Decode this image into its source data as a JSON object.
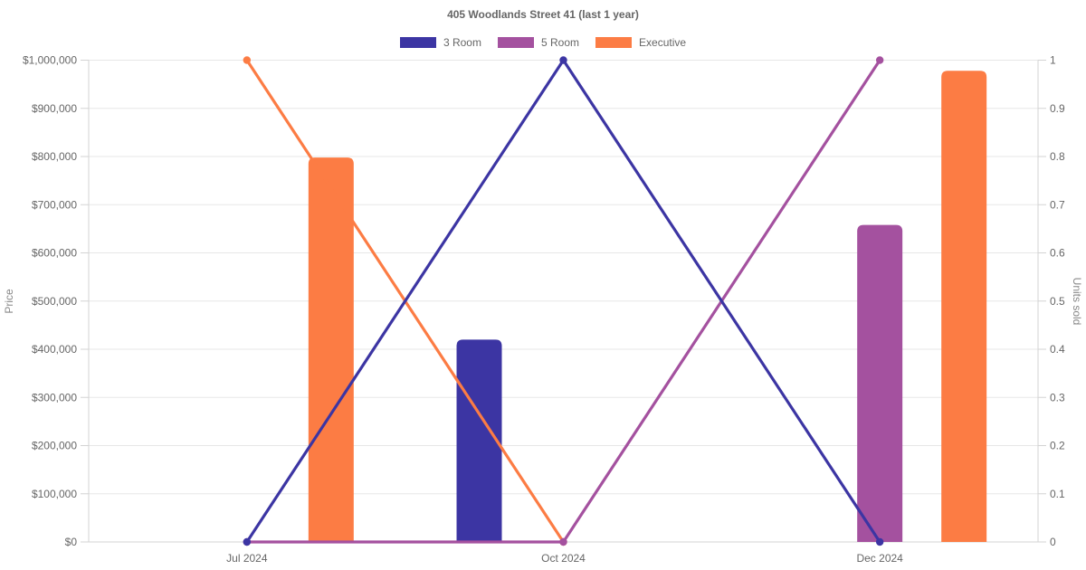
{
  "title": "405 Woodlands Street 41 (last 1 year)",
  "chart_data": {
    "type": "mixed-bar-line",
    "categories": [
      "Jul 2024",
      "Oct 2024",
      "Dec 2024"
    ],
    "series": [
      {
        "name": "3 Room",
        "color": "#3c35a3",
        "price_bars": [
          null,
          420000,
          null
        ],
        "units_line": [
          0,
          1,
          0
        ]
      },
      {
        "name": "5 Room",
        "color": "#a4519f",
        "price_bars": [
          null,
          null,
          658000
        ],
        "units_line": [
          0,
          0,
          1
        ]
      },
      {
        "name": "Executive",
        "color": "#fc7c44",
        "price_bars": [
          798000,
          null,
          978000
        ],
        "units_line": [
          1,
          0,
          null
        ]
      }
    ],
    "left_axis": {
      "label": "Price",
      "min": 0,
      "max": 1000000,
      "step": 100000,
      "ticks": [
        "$0",
        "$100,000",
        "$200,000",
        "$300,000",
        "$400,000",
        "$500,000",
        "$600,000",
        "$700,000",
        "$800,000",
        "$900,000",
        "$1,000,000"
      ]
    },
    "right_axis": {
      "label": "Units sold",
      "min": 0,
      "max": 1,
      "step": 0.1,
      "ticks": [
        "0",
        "0.1",
        "0.2",
        "0.3",
        "0.4",
        "0.5",
        "0.6",
        "0.7",
        "0.8",
        "0.9",
        "1"
      ]
    },
    "legend_position": "top",
    "grid": true,
    "colors": {
      "grid": "#e7e7e7",
      "axis": "#d3d3d3",
      "tick_text": "#666666",
      "title_text": "#666666"
    }
  }
}
